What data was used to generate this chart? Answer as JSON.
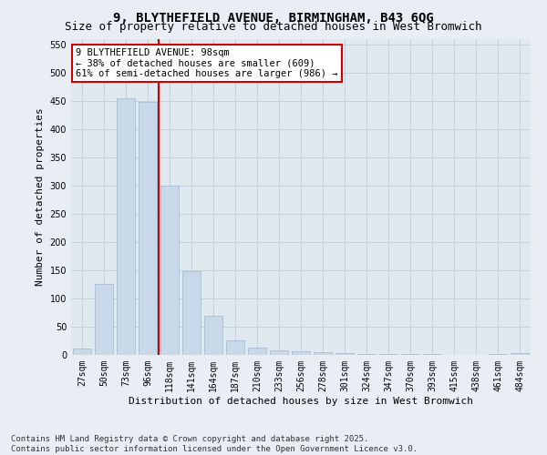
{
  "title": "9, BLYTHEFIELD AVENUE, BIRMINGHAM, B43 6QG",
  "subtitle": "Size of property relative to detached houses in West Bromwich",
  "xlabel": "Distribution of detached houses by size in West Bromwich",
  "ylabel": "Number of detached properties",
  "categories": [
    "27sqm",
    "50sqm",
    "73sqm",
    "96sqm",
    "118sqm",
    "141sqm",
    "164sqm",
    "187sqm",
    "210sqm",
    "233sqm",
    "256sqm",
    "278sqm",
    "301sqm",
    "324sqm",
    "347sqm",
    "370sqm",
    "393sqm",
    "415sqm",
    "438sqm",
    "461sqm",
    "484sqm"
  ],
  "values": [
    12,
    125,
    455,
    448,
    300,
    148,
    70,
    26,
    13,
    8,
    6,
    5,
    3,
    2,
    1,
    1,
    1,
    0,
    0,
    1,
    3
  ],
  "bar_color": "#c8d8e8",
  "bar_edge_color": "#a0b8cc",
  "grid_color": "#c0ccd8",
  "bg_color": "#e0e8f0",
  "fig_bg_color": "#e8eef4",
  "vline_color": "#cc0000",
  "vline_x_index": 3,
  "annotation_text": "9 BLYTHEFIELD AVENUE: 98sqm\n← 38% of detached houses are smaller (609)\n61% of semi-detached houses are larger (986) →",
  "annotation_box_color": "#ffffff",
  "annotation_box_edge": "#cc0000",
  "ylim": [
    0,
    560
  ],
  "yticks": [
    0,
    50,
    100,
    150,
    200,
    250,
    300,
    350,
    400,
    450,
    500,
    550
  ],
  "footer": "Contains HM Land Registry data © Crown copyright and database right 2025.\nContains public sector information licensed under the Open Government Licence v3.0.",
  "title_fontsize": 10,
  "subtitle_fontsize": 9,
  "axis_label_fontsize": 8,
  "tick_fontsize": 7,
  "annotation_fontsize": 7.5,
  "footer_fontsize": 6.5
}
